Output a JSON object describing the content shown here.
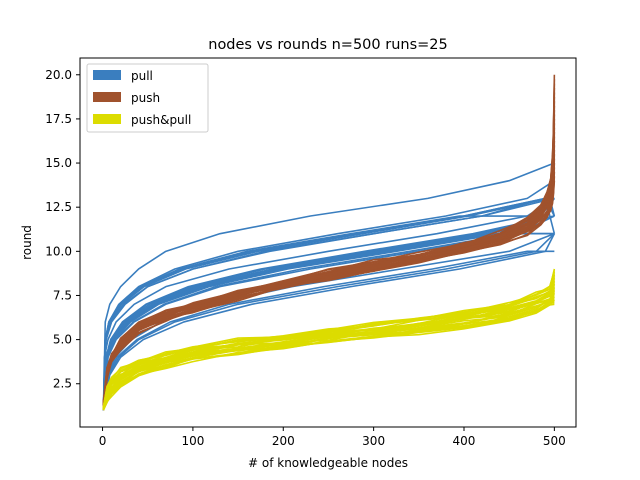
{
  "chart_data": {
    "type": "line",
    "title": "nodes vs rounds n=500 runs=25",
    "xlabel": "# of knowledgeable nodes",
    "ylabel": "round",
    "xlim": [
      -24.95,
      523.95
    ],
    "ylim": [
      0.05,
      20.95
    ],
    "xticks": [
      "0",
      "100",
      "200",
      "300",
      "400",
      "500"
    ],
    "yticks": [
      "2.5",
      "5.0",
      "7.5",
      "10.0",
      "12.5",
      "15.0",
      "17.5",
      "20.0"
    ],
    "xtick_values": [
      0,
      100,
      200,
      300,
      400,
      500
    ],
    "ytick_values": [
      2.5,
      5.0,
      7.5,
      10.0,
      12.5,
      15.0,
      17.5,
      20.0
    ],
    "grid": false,
    "legend_position": "top-left",
    "runs": 25,
    "series": [
      {
        "name": "pull",
        "color": "#3a7ebf",
        "runs": [
          {
            "x": [
              1,
              3,
              8,
              20,
              40,
              70,
              130,
              230,
              360,
              450,
              500
            ],
            "y": [
              1,
              6,
              7,
              8,
              9,
              10,
              11,
              12,
              13,
              14,
              15
            ]
          },
          {
            "x": [
              1,
              4,
              10,
              25,
              50,
              100,
              180,
              300,
              420,
              500
            ],
            "y": [
              1,
              5,
              6,
              7,
              8,
              9,
              10,
              11,
              12,
              13
            ]
          },
          {
            "x": [
              1,
              3,
              7,
              18,
              40,
              80,
              150,
              260,
              380,
              470,
              500
            ],
            "y": [
              1,
              5,
              6,
              7,
              8,
              9,
              10,
              11,
              12,
              13,
              14
            ]
          },
          {
            "x": [
              1,
              5,
              12,
              30,
              60,
              110,
              200,
              320,
              440,
              500
            ],
            "y": [
              1,
              4,
              5,
              6,
              7,
              8,
              9,
              10,
              11,
              12
            ]
          },
          {
            "x": [
              1,
              4,
              9,
              22,
              48,
              95,
              175,
              290,
              410,
              500
            ],
            "y": [
              1,
              4,
              5,
              6,
              7,
              8,
              9,
              10,
              11,
              12
            ]
          },
          {
            "x": [
              1,
              3,
              8,
              20,
              45,
              90,
              170,
              285,
              400,
              490,
              500
            ],
            "y": [
              1,
              5,
              6,
              7,
              8,
              9,
              10,
              11,
              12,
              13,
              11
            ]
          },
          {
            "x": [
              1,
              6,
              15,
              35,
              70,
              130,
              230,
              350,
              460,
              500
            ],
            "y": [
              1,
              4,
              5,
              6,
              7,
              8,
              9,
              10,
              11,
              12
            ]
          },
          {
            "x": [
              1,
              2,
              6,
              15,
              35,
              70,
              140,
              250,
              370,
              470,
              500
            ],
            "y": [
              1,
              4,
              5,
              6,
              7,
              8,
              9,
              10,
              11,
              12,
              13
            ]
          },
          {
            "x": [
              1,
              5,
              14,
              32,
              65,
              120,
              210,
              330,
              450,
              500
            ],
            "y": [
              1,
              3,
              4,
              5,
              6,
              7,
              8,
              9,
              10,
              11
            ]
          },
          {
            "x": [
              1,
              4,
              11,
              28,
              58,
              110,
              195,
              310,
              430,
              500
            ],
            "y": [
              1,
              4,
              5,
              6,
              7,
              8,
              9,
              10,
              11,
              12
            ]
          },
          {
            "x": [
              1,
              3,
              9,
              23,
              50,
              100,
              185,
              300,
              420,
              490,
              500
            ],
            "y": [
              1,
              5,
              6,
              7,
              8,
              9,
              10,
              11,
              12,
              13,
              13
            ]
          },
          {
            "x": [
              1,
              7,
              18,
              40,
              80,
              150,
              260,
              380,
              480,
              500
            ],
            "y": [
              1,
              3,
              4,
              5,
              6,
              7,
              8,
              9,
              10,
              11
            ]
          },
          {
            "x": [
              1,
              4,
              10,
              26,
              55,
              105,
              190,
              305,
              425,
              500
            ],
            "y": [
              1,
              4,
              5,
              6,
              7,
              8,
              9,
              10,
              11,
              12
            ]
          },
          {
            "x": [
              1,
              3,
              8,
              21,
              46,
              92,
              172,
              288,
              405,
              495,
              500
            ],
            "y": [
              1,
              5,
              6,
              7,
              8,
              9,
              10,
              11,
              12,
              13,
              12
            ]
          },
          {
            "x": [
              1,
              6,
              16,
              38,
              75,
              140,
              245,
              365,
              470,
              500
            ],
            "y": [
              1,
              3,
              4,
              5,
              6,
              7,
              8,
              9,
              10,
              10
            ]
          },
          {
            "x": [
              1,
              5,
              13,
              31,
              62,
              118,
              205,
              325,
              440,
              500
            ],
            "y": [
              1,
              4,
              5,
              6,
              7,
              8,
              9,
              10,
              11,
              11
            ]
          },
          {
            "x": [
              1,
              4,
              10,
              24,
              52,
              102,
              188,
              302,
              418,
              500
            ],
            "y": [
              1,
              4,
              5,
              6,
              7,
              8,
              9,
              10,
              11,
              12
            ]
          },
          {
            "x": [
              1,
              3,
              7,
              19,
              42,
              85,
              160,
              275,
              395,
              485,
              500
            ],
            "y": [
              1,
              5,
              6,
              7,
              8,
              9,
              10,
              11,
              12,
              12,
              13
            ]
          },
          {
            "x": [
              1,
              8,
              20,
              45,
              90,
              165,
              275,
              395,
              490,
              500
            ],
            "y": [
              1,
              3,
              4,
              5,
              6,
              7,
              8,
              9,
              10,
              11
            ]
          },
          {
            "x": [
              1,
              5,
              12,
              29,
              60,
              115,
              200,
              318,
              435,
              500
            ],
            "y": [
              1,
              4,
              5,
              6,
              7,
              8,
              9,
              10,
              11,
              11
            ]
          },
          {
            "x": [
              1,
              4,
              9,
              23,
              49,
              98,
              180,
              295,
              415,
              500
            ],
            "y": [
              1,
              4,
              5,
              6,
              7,
              8,
              9,
              10,
              11,
              12
            ]
          },
          {
            "x": [
              1,
              6,
              14,
              34,
              68,
              125,
              220,
              340,
              455,
              500
            ],
            "y": [
              1,
              4,
              5,
              6,
              7,
              8,
              9,
              10,
              11,
              11
            ]
          },
          {
            "x": [
              1,
              3,
              8,
              20,
              44,
              88,
              165,
              280,
              400,
              490,
              500
            ],
            "y": [
              1,
              5,
              6,
              7,
              8,
              9,
              10,
              11,
              12,
              13,
              12
            ]
          },
          {
            "x": [
              1,
              5,
              13,
              30,
              61,
              116,
              202,
              322,
              438,
              500
            ],
            "y": [
              1,
              4,
              5,
              6,
              7,
              8,
              9,
              10,
              11,
              12
            ]
          },
          {
            "x": [
              1,
              4,
              11,
              27,
              56,
              108,
              192,
              308,
              428,
              500
            ],
            "y": [
              1,
              4,
              5,
              6,
              7,
              8,
              9,
              10,
              11,
              12
            ]
          }
        ]
      },
      {
        "name": "push",
        "color": "#a0522d",
        "band": {
          "x": [
            1,
            5,
            10,
            20,
            40,
            70,
            100,
            150,
            200,
            250,
            300,
            350,
            400,
            440,
            470,
            485,
            492,
            496,
            498,
            499,
            500
          ],
          "low": [
            1,
            2.8,
            3.8,
            4.5,
            5.4,
            6.1,
            6.6,
            7.3,
            7.9,
            8.4,
            8.9,
            9.4,
            9.9,
            10.4,
            11.0,
            11.5,
            12.0,
            12.3,
            12.8,
            13.2,
            14.0
          ],
          "high": [
            1.5,
            3.4,
            4.2,
            5.0,
            5.9,
            6.6,
            7.1,
            7.8,
            8.4,
            8.9,
            9.4,
            9.9,
            10.5,
            11.1,
            11.9,
            12.6,
            13.4,
            14.2,
            15.5,
            17.0,
            20.0
          ]
        }
      },
      {
        "name": "push&pull",
        "color": "#dcdc00",
        "band": {
          "x": [
            1,
            5,
            10,
            20,
            40,
            70,
            100,
            150,
            200,
            250,
            300,
            350,
            400,
            450,
            480,
            495,
            500
          ],
          "low": [
            1,
            1.5,
            1.9,
            2.3,
            2.9,
            3.4,
            3.8,
            4.2,
            4.5,
            4.8,
            5.1,
            5.4,
            5.7,
            6.1,
            6.5,
            6.9,
            7.0
          ],
          "high": [
            1.2,
            2.3,
            2.8,
            3.3,
            3.8,
            4.2,
            4.6,
            5.0,
            5.3,
            5.6,
            5.9,
            6.2,
            6.6,
            7.1,
            7.6,
            8.0,
            9.0
          ]
        }
      }
    ]
  }
}
